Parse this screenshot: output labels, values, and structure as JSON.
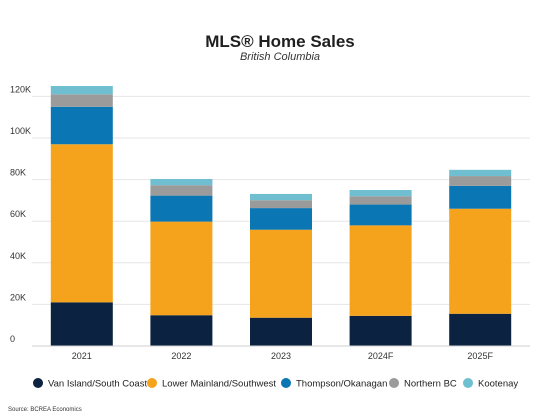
{
  "chart_data": {
    "type": "bar",
    "stacked": true,
    "title": "MLS® Home Sales",
    "subtitle": "British Columbia",
    "xlabel": "",
    "ylabel": "",
    "categories": [
      "2021",
      "2022",
      "2023",
      "2024F",
      "2025F"
    ],
    "ylim": [
      0,
      125000
    ],
    "yticks": [
      0,
      20000,
      40000,
      60000,
      80000,
      100000,
      120000
    ],
    "ytick_labels": [
      "0",
      "20K",
      "40K",
      "60K",
      "80K",
      "100K",
      "120K"
    ],
    "grid": "horizontal",
    "legend_position": "bottom",
    "series": [
      {
        "name": "Van Island/South Coast",
        "color": "#0b2340",
        "values": [
          21000,
          14800,
          13600,
          14500,
          15500
        ]
      },
      {
        "name": "Lower Mainland/Southwest",
        "color": "#f5a31c",
        "values": [
          76000,
          45000,
          42300,
          43500,
          50500
        ]
      },
      {
        "name": "Thompson/Okanagan",
        "color": "#0a76b4",
        "values": [
          18000,
          12500,
          10400,
          10000,
          11000
        ]
      },
      {
        "name": "Northern BC",
        "color": "#9b9b9b",
        "values": [
          6000,
          5000,
          3800,
          4000,
          4700
        ]
      },
      {
        "name": "Kootenay",
        "color": "#6fbfd0",
        "values": [
          4000,
          3000,
          3000,
          3000,
          3000
        ]
      }
    ],
    "source": "Source: BCREA Economics"
  }
}
